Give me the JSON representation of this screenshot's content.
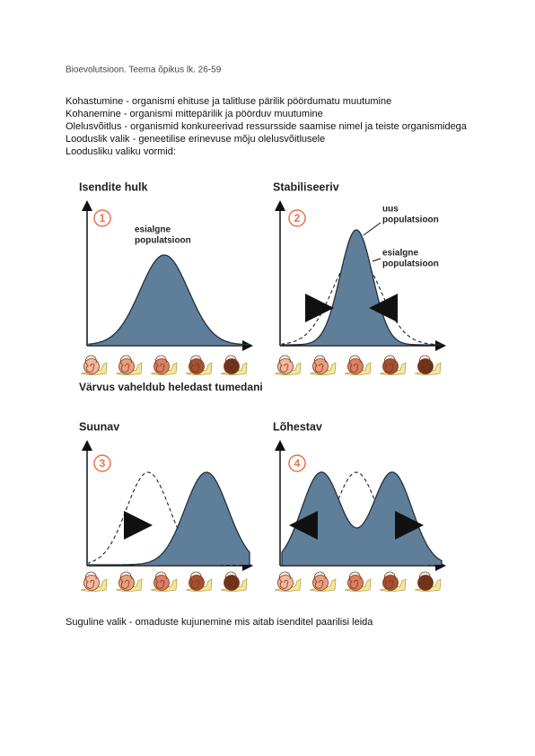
{
  "header": {
    "title": "Bioevolutsioon. Teema õpikus lk. 26-59"
  },
  "paragraphs": [
    "Kohastumine - organismi ehituse ja talitluse pärilik pöördumatu muutumine",
    "Kohanemine - organismi mittepärilik ja pöörduv muutumine",
    "Olelusvõitlus - organismid konkureerivad ressursside saamise nimel ja teiste organismidega",
    "Looduslik valik - geneetilise erinevuse mõju olelusvõitlusele",
    "Loodusliku valiku vormid:"
  ],
  "figure": {
    "panels": [
      {
        "title": "Isendite hulk",
        "number": "1",
        "labels": [
          [
            "esialgne",
            "populatsioon"
          ]
        ]
      },
      {
        "title": "Stabiliseeriv",
        "number": "2",
        "labels": [
          [
            "uus",
            "populatsioon"
          ],
          [
            "esialgne",
            "populatsioon"
          ]
        ]
      },
      {
        "title": "Suunav",
        "number": "3"
      },
      {
        "title": "Lõhestav",
        "number": "4"
      }
    ],
    "caption": "Värvus vaheldub heledast tumedani"
  },
  "footer_text": "Suguline valik - omaduste kujunemine mis aitab isenditel paarilisi leida"
}
